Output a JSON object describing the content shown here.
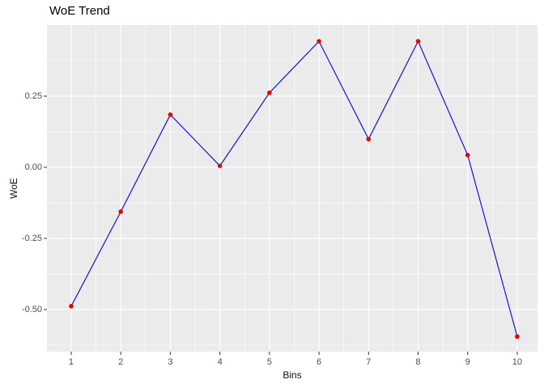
{
  "chart_data": {
    "type": "line",
    "title": "WoE Trend",
    "xlabel": "Bins",
    "ylabel": "WoE",
    "x": [
      1,
      2,
      3,
      4,
      5,
      6,
      7,
      8,
      9,
      10
    ],
    "series": [
      {
        "name": "WoE",
        "values": [
          -0.488,
          -0.156,
          0.185,
          0.005,
          0.262,
          0.443,
          0.099,
          0.443,
          0.043,
          -0.595
        ]
      }
    ],
    "xlim": [
      0.51,
      10.41
    ],
    "ylim": [
      -0.648,
      0.5
    ],
    "x_ticks": {
      "values": [
        1,
        2,
        3,
        4,
        5,
        6,
        7,
        8,
        9,
        10
      ],
      "labels": [
        "1",
        "2",
        "3",
        "4",
        "5",
        "6",
        "7",
        "8",
        "9",
        "10"
      ]
    },
    "y_ticks": {
      "values": [
        0.25,
        0.0,
        -0.25,
        -0.5
      ],
      "labels": [
        "0.25",
        "0.00",
        "-0.25",
        "-0.50"
      ]
    },
    "x_minor": [
      1.5,
      2.5,
      3.5,
      4.5,
      5.5,
      6.5,
      7.5,
      8.5,
      9.5
    ],
    "y_minor": [
      0.375,
      0.125,
      -0.125,
      -0.375,
      -0.625
    ],
    "grid": true,
    "legend": null,
    "colors": {
      "line": "#0000EE",
      "point": "#EE0000",
      "panel_bg": "#EBEBEB",
      "grid_major": "#FFFFFF",
      "grid_minor": "#FFFFFF",
      "tick_mark": "#333333",
      "tick_label": "#4D4D4D",
      "axis_title": "#111111",
      "title": "#000000",
      "background": "#FFFFFF"
    }
  }
}
